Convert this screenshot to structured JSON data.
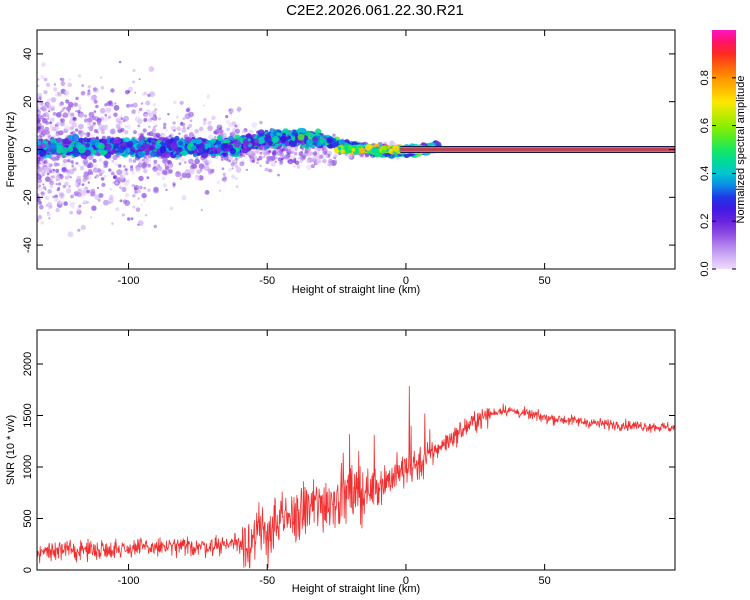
{
  "title": "C2E2.2026.061.22.30.R21",
  "colors": {
    "snr_line": "#f03030",
    "ridge": "#ff1e3c",
    "axis": "#000000"
  },
  "chart_data": [
    {
      "type": "heatmap",
      "xlabel": "Height of straight line (km)",
      "ylabel": "Frequency (Hz)",
      "xlim": [
        -133,
        97
      ],
      "ylim": [
        -50,
        50
      ],
      "xticks": [
        -100,
        -50,
        0,
        50
      ],
      "yticks": [
        -40,
        -20,
        0,
        20,
        40
      ],
      "xtick_labels": [
        "-100",
        "-50",
        "0",
        "50"
      ],
      "ytick_labels": [
        "-40",
        "-20",
        "0",
        "20",
        "40"
      ],
      "ridge_frequency": 0,
      "ridge_start_km": -2,
      "colorbar": {
        "label": "Normalized spectral amplitude",
        "range": [
          0,
          1
        ],
        "ticks": [
          0.0,
          0.2,
          0.4,
          0.6,
          0.8
        ],
        "tick_labels": [
          "0.0",
          "0.2",
          "0.4",
          "0.6",
          "0.8"
        ]
      },
      "grid": false
    },
    {
      "type": "line",
      "xlabel": "Height of straight line (km)",
      "ylabel": "SNR (10 * v/v)",
      "xlim": [
        -133,
        97
      ],
      "ylim": [
        0,
        2330
      ],
      "xticks": [
        -100,
        -50,
        0,
        50
      ],
      "yticks": [
        0,
        500,
        1000,
        1500,
        2000
      ],
      "xtick_labels": [
        "-100",
        "-50",
        "0",
        "50"
      ],
      "ytick_labels": [
        "0",
        "500",
        "1000",
        "1500",
        "2000"
      ],
      "trend": {
        "x": [
          -133,
          -110,
          -90,
          -70,
          -55,
          -45,
          -35,
          -25,
          -15,
          -5,
          5,
          15,
          25,
          35,
          50,
          70,
          97
        ],
        "y": [
          180,
          200,
          220,
          230,
          300,
          450,
          600,
          700,
          750,
          900,
          1050,
          1250,
          1450,
          1560,
          1480,
          1420,
          1380
        ]
      },
      "grid": false
    }
  ]
}
